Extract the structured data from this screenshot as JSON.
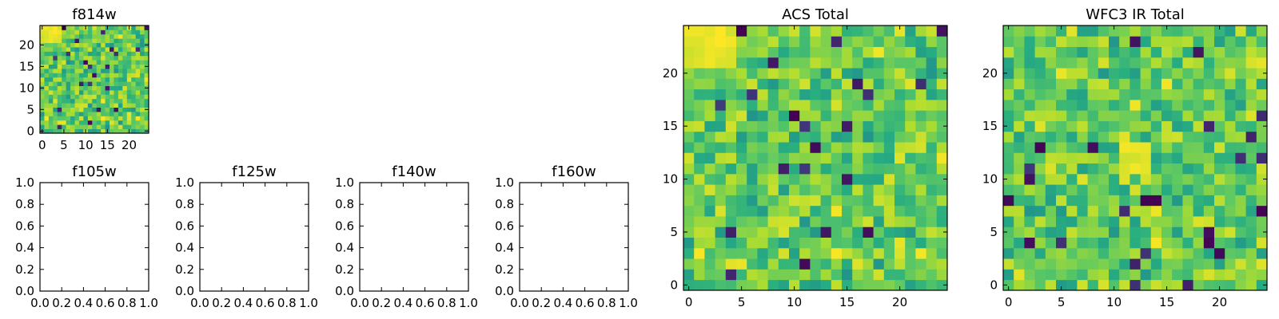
{
  "colors": {
    "low": "#440154",
    "mid": "#21908d",
    "high": "#fde725"
  },
  "chart_data": [
    {
      "type": "heatmap",
      "title": "f814w",
      "grid": false,
      "xlim": [
        -0.5,
        24.5
      ],
      "ylim": [
        -0.5,
        24.5
      ],
      "size": [
        25,
        25
      ],
      "seed": 11,
      "xticks": [
        "0",
        "5",
        "10",
        "15",
        "20"
      ],
      "yticks": [
        "0",
        "5",
        "10",
        "15",
        "20"
      ],
      "bright_region": {
        "x": [
          0,
          4
        ],
        "y": [
          21,
          24
        ]
      }
    },
    {
      "type": "heatmap",
      "title": "f105w",
      "empty": true,
      "grid": false,
      "xlim": [
        0,
        1
      ],
      "ylim": [
        0,
        1
      ],
      "xticks": [
        "0.0",
        "0.2",
        "0.4",
        "0.6",
        "0.8",
        "1.0"
      ],
      "yticks": [
        "0.0",
        "0.2",
        "0.4",
        "0.6",
        "0.8",
        "1.0"
      ]
    },
    {
      "type": "heatmap",
      "title": "f125w",
      "empty": true,
      "grid": false,
      "xlim": [
        0,
        1
      ],
      "ylim": [
        0,
        1
      ],
      "xticks": [
        "0.0",
        "0.2",
        "0.4",
        "0.6",
        "0.8",
        "1.0"
      ],
      "yticks": [
        "0.0",
        "0.2",
        "0.4",
        "0.6",
        "0.8",
        "1.0"
      ]
    },
    {
      "type": "heatmap",
      "title": "f140w",
      "empty": true,
      "grid": false,
      "xlim": [
        0,
        1
      ],
      "ylim": [
        0,
        1
      ],
      "xticks": [
        "0.0",
        "0.2",
        "0.4",
        "0.6",
        "0.8",
        "1.0"
      ],
      "yticks": [
        "0.0",
        "0.2",
        "0.4",
        "0.6",
        "0.8",
        "1.0"
      ]
    },
    {
      "type": "heatmap",
      "title": "f160w",
      "empty": true,
      "grid": false,
      "xlim": [
        0,
        1
      ],
      "ylim": [
        0,
        1
      ],
      "xticks": [
        "0.0",
        "0.2",
        "0.4",
        "0.6",
        "0.8",
        "1.0"
      ],
      "yticks": [
        "0.0",
        "0.2",
        "0.4",
        "0.6",
        "0.8",
        "1.0"
      ]
    },
    {
      "type": "heatmap",
      "title": "ACS Total",
      "grid": false,
      "xlim": [
        -0.5,
        24.5
      ],
      "ylim": [
        -0.5,
        24.5
      ],
      "size": [
        25,
        25
      ],
      "seed": 11,
      "xticks": [
        "0",
        "5",
        "10",
        "15",
        "20"
      ],
      "yticks": [
        "0",
        "5",
        "10",
        "15",
        "20"
      ],
      "bright_region": {
        "x": [
          0,
          4
        ],
        "y": [
          21,
          24
        ]
      }
    },
    {
      "type": "heatmap",
      "title": "WFC3 IR Total",
      "grid": false,
      "xlim": [
        -0.5,
        24.5
      ],
      "ylim": [
        -0.5,
        24.5
      ],
      "size": [
        25,
        25
      ],
      "seed": 29,
      "xticks": [
        "0",
        "5",
        "10",
        "15",
        "20"
      ],
      "yticks": [
        "0",
        "5",
        "10",
        "15",
        "20"
      ],
      "bright_region": {
        "x": [
          11,
          13
        ],
        "y": [
          11,
          13
        ]
      }
    }
  ]
}
